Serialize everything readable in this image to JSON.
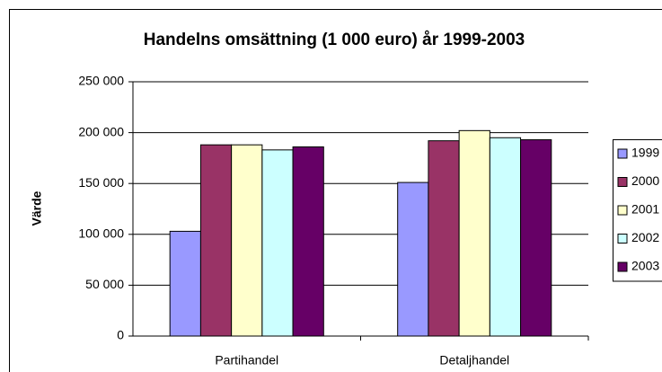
{
  "chart_data": {
    "type": "bar",
    "title": "Handelns omsättning (1 000 euro) år 1999-2003",
    "y_label": "Värde",
    "categories": [
      "Partihandel",
      "Detaljhandel"
    ],
    "series": [
      {
        "name": "1999",
        "color": "#9999ff",
        "values": [
          103000,
          151000
        ]
      },
      {
        "name": "2000",
        "color": "#993366",
        "values": [
          188000,
          192000
        ]
      },
      {
        "name": "2001",
        "color": "#ffffcc",
        "values": [
          188000,
          202000
        ]
      },
      {
        "name": "2002",
        "color": "#ccffff",
        "values": [
          183000,
          195000
        ]
      },
      {
        "name": "2003",
        "color": "#660066",
        "values": [
          186000,
          193000
        ]
      }
    ],
    "ylim": [
      0,
      250000
    ],
    "yticks": [
      0,
      {
        "value": 50000,
        "label": "50 000"
      },
      {
        "value": 100000,
        "label": "100 000"
      },
      {
        "value": 150000,
        "label": "150 000"
      },
      {
        "value": 200000,
        "label": "200 000"
      },
      {
        "value": 250000,
        "label": "250 000"
      }
    ],
    "grid": true,
    "legend": "right"
  }
}
